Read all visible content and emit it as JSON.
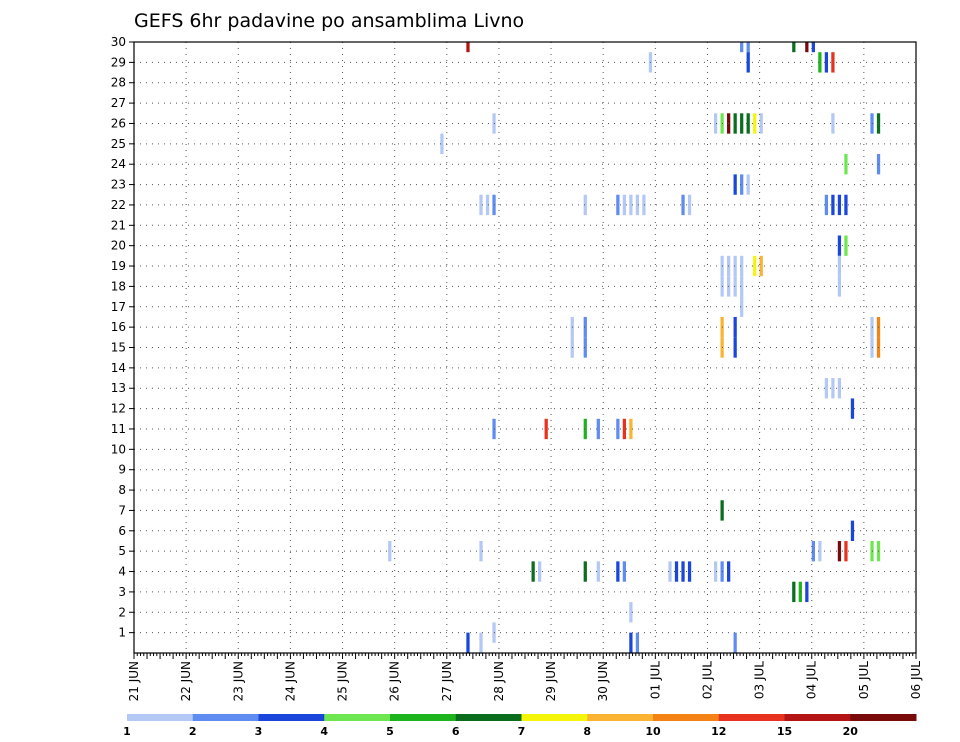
{
  "chart_data": {
    "type": "heatmap",
    "title": "GEFS 6hr padavine po ansamblima Livno",
    "x_tick_labels": [
      "21 JUN",
      "22 JUN",
      "23 JUN",
      "24 JUN",
      "25 JUN",
      "26 JUN",
      "27 JUN",
      "28 JUN",
      "29 JUN",
      "30 JUN",
      "01 JUL",
      "02 JUL",
      "03 JUL",
      "04 JUL",
      "05 JUL",
      "06 JUL"
    ],
    "y_tick_labels": [
      "1",
      "2",
      "3",
      "4",
      "5",
      "6",
      "7",
      "8",
      "9",
      "10",
      "11",
      "12",
      "13",
      "14",
      "15",
      "16",
      "17",
      "18",
      "19",
      "20",
      "21",
      "22",
      "23",
      "24",
      "25",
      "26",
      "27",
      "28",
      "29",
      "30"
    ],
    "xlim": [
      0,
      60
    ],
    "ylim": [
      0,
      30
    ],
    "step_hours": 6,
    "grid": true,
    "legend_placement": "bottom",
    "legend_labels": [
      "1",
      "2",
      "3",
      "4",
      "5",
      "6",
      "7",
      "8",
      "10",
      "12",
      "15",
      "20"
    ],
    "legend_colors": [
      "#b4c8f5",
      "#5f8cf0",
      "#1a46dc",
      "#6ee650",
      "#1eb41e",
      "#0a6e1e",
      "#f5f50a",
      "#fab432",
      "#f58214",
      "#e6321e",
      "#b41414",
      "#780a0a"
    ],
    "cells": [
      {
        "t": 25.5,
        "m": 30,
        "c": 10
      },
      {
        "t": 46.5,
        "m": 30,
        "c": 1
      },
      {
        "t": 47,
        "m": 30,
        "c": 1
      },
      {
        "t": 50.5,
        "m": 30,
        "c": 5
      },
      {
        "t": 51.5,
        "m": 30,
        "c": 11
      },
      {
        "t": 52,
        "m": 30,
        "c": 2
      },
      {
        "t": 39.5,
        "m": 29,
        "c": 0
      },
      {
        "t": 47,
        "m": 29,
        "c": 2
      },
      {
        "t": 52.5,
        "m": 29,
        "c": 4
      },
      {
        "t": 53,
        "m": 29,
        "c": 2
      },
      {
        "t": 53.5,
        "m": 29,
        "c": 9
      },
      {
        "t": 27.5,
        "m": 26,
        "c": 0
      },
      {
        "t": 44.5,
        "m": 26,
        "c": 0
      },
      {
        "t": 45,
        "m": 26,
        "c": 3
      },
      {
        "t": 45.5,
        "m": 26,
        "c": 11
      },
      {
        "t": 46,
        "m": 26,
        "c": 5
      },
      {
        "t": 46.5,
        "m": 26,
        "c": 5
      },
      {
        "t": 47,
        "m": 26,
        "c": 5
      },
      {
        "t": 47.5,
        "m": 26,
        "c": 6
      },
      {
        "t": 48,
        "m": 26,
        "c": 0
      },
      {
        "t": 53.5,
        "m": 26,
        "c": 0
      },
      {
        "t": 56.5,
        "m": 26,
        "c": 1
      },
      {
        "t": 57,
        "m": 26,
        "c": 5
      },
      {
        "t": 23.5,
        "m": 25,
        "c": 0
      },
      {
        "t": 54.5,
        "m": 24,
        "c": 3
      },
      {
        "t": 57,
        "m": 24,
        "c": 1
      },
      {
        "t": 46,
        "m": 23,
        "c": 2
      },
      {
        "t": 46.5,
        "m": 23,
        "c": 1
      },
      {
        "t": 47,
        "m": 23,
        "c": 0
      },
      {
        "t": 26.5,
        "m": 22,
        "c": 0
      },
      {
        "t": 27,
        "m": 22,
        "c": 0
      },
      {
        "t": 27.5,
        "m": 22,
        "c": 1
      },
      {
        "t": 34.5,
        "m": 22,
        "c": 0
      },
      {
        "t": 37,
        "m": 22,
        "c": 1
      },
      {
        "t": 37.5,
        "m": 22,
        "c": 0
      },
      {
        "t": 38,
        "m": 22,
        "c": 0
      },
      {
        "t": 38.5,
        "m": 22,
        "c": 0
      },
      {
        "t": 39,
        "m": 22,
        "c": 0
      },
      {
        "t": 42,
        "m": 22,
        "c": 1
      },
      {
        "t": 42.5,
        "m": 22,
        "c": 0
      },
      {
        "t": 53,
        "m": 22,
        "c": 1
      },
      {
        "t": 53.5,
        "m": 22,
        "c": 2
      },
      {
        "t": 54,
        "m": 22,
        "c": 2
      },
      {
        "t": 54.5,
        "m": 22,
        "c": 2
      },
      {
        "t": 54,
        "m": 20,
        "c": 2
      },
      {
        "t": 54.5,
        "m": 20,
        "c": 3
      },
      {
        "t": 45,
        "m": 19,
        "c": 0
      },
      {
        "t": 45.5,
        "m": 19,
        "c": 0
      },
      {
        "t": 46,
        "m": 19,
        "c": 0
      },
      {
        "t": 46.5,
        "m": 19,
        "c": 0
      },
      {
        "t": 47.5,
        "m": 19,
        "c": 6
      },
      {
        "t": 48,
        "m": 19,
        "c": 7
      },
      {
        "t": 54,
        "m": 19,
        "c": 0
      },
      {
        "t": 45,
        "m": 18,
        "c": 0
      },
      {
        "t": 45.5,
        "m": 18,
        "c": 0
      },
      {
        "t": 46,
        "m": 18,
        "c": 0
      },
      {
        "t": 46.5,
        "m": 18,
        "c": 0
      },
      {
        "t": 54,
        "m": 18,
        "c": 0
      },
      {
        "t": 46.5,
        "m": 17,
        "c": 0
      },
      {
        "t": 33.5,
        "m": 16,
        "c": 0
      },
      {
        "t": 34.5,
        "m": 16,
        "c": 1
      },
      {
        "t": 45,
        "m": 16,
        "c": 7
      },
      {
        "t": 46,
        "m": 16,
        "c": 2
      },
      {
        "t": 56.5,
        "m": 16,
        "c": 0
      },
      {
        "t": 57,
        "m": 16,
        "c": 8
      },
      {
        "t": 33.5,
        "m": 15,
        "c": 0
      },
      {
        "t": 34.5,
        "m": 15,
        "c": 1
      },
      {
        "t": 45,
        "m": 15,
        "c": 7
      },
      {
        "t": 46,
        "m": 15,
        "c": 2
      },
      {
        "t": 56.5,
        "m": 15,
        "c": 0
      },
      {
        "t": 57,
        "m": 15,
        "c": 8
      },
      {
        "t": 53,
        "m": 13,
        "c": 0
      },
      {
        "t": 53.5,
        "m": 13,
        "c": 0
      },
      {
        "t": 54,
        "m": 13,
        "c": 0
      },
      {
        "t": 55,
        "m": 12,
        "c": 2
      },
      {
        "t": 27.5,
        "m": 11,
        "c": 1
      },
      {
        "t": 31.5,
        "m": 11,
        "c": 9
      },
      {
        "t": 34.5,
        "m": 11,
        "c": 4
      },
      {
        "t": 35.5,
        "m": 11,
        "c": 1
      },
      {
        "t": 37,
        "m": 11,
        "c": 1
      },
      {
        "t": 37.5,
        "m": 11,
        "c": 9
      },
      {
        "t": 38,
        "m": 11,
        "c": 7
      },
      {
        "t": 45,
        "m": 7,
        "c": 5
      },
      {
        "t": 55,
        "m": 6,
        "c": 2
      },
      {
        "t": 19.5,
        "m": 5,
        "c": 0
      },
      {
        "t": 26.5,
        "m": 5,
        "c": 0
      },
      {
        "t": 52,
        "m": 5,
        "c": 1
      },
      {
        "t": 52.5,
        "m": 5,
        "c": 0
      },
      {
        "t": 54,
        "m": 5,
        "c": 11
      },
      {
        "t": 54.5,
        "m": 5,
        "c": 9
      },
      {
        "t": 56.5,
        "m": 5,
        "c": 3
      },
      {
        "t": 57,
        "m": 5,
        "c": 3
      },
      {
        "t": 30.5,
        "m": 4,
        "c": 5
      },
      {
        "t": 31,
        "m": 4,
        "c": 0
      },
      {
        "t": 34.5,
        "m": 4,
        "c": 5
      },
      {
        "t": 35.5,
        "m": 4,
        "c": 0
      },
      {
        "t": 37,
        "m": 4,
        "c": 2
      },
      {
        "t": 37.5,
        "m": 4,
        "c": 1
      },
      {
        "t": 41,
        "m": 4,
        "c": 0
      },
      {
        "t": 41.5,
        "m": 4,
        "c": 2
      },
      {
        "t": 42,
        "m": 4,
        "c": 2
      },
      {
        "t": 42.5,
        "m": 4,
        "c": 2
      },
      {
        "t": 44.5,
        "m": 4,
        "c": 0
      },
      {
        "t": 45,
        "m": 4,
        "c": 1
      },
      {
        "t": 45.5,
        "m": 4,
        "c": 2
      },
      {
        "t": 50.5,
        "m": 3,
        "c": 5
      },
      {
        "t": 51,
        "m": 3,
        "c": 4
      },
      {
        "t": 51.5,
        "m": 3,
        "c": 2
      },
      {
        "t": 38,
        "m": 2,
        "c": 0
      },
      {
        "t": 27.5,
        "m": 1,
        "c": 0
      },
      {
        "t": 25.5,
        "m": 0.5,
        "c": 2
      },
      {
        "t": 26.5,
        "m": 0.5,
        "c": 0
      },
      {
        "t": 38,
        "m": 0.5,
        "c": 2
      },
      {
        "t": 38.5,
        "m": 0.5,
        "c": 1
      },
      {
        "t": 46,
        "m": 0.5,
        "c": 1
      }
    ]
  }
}
